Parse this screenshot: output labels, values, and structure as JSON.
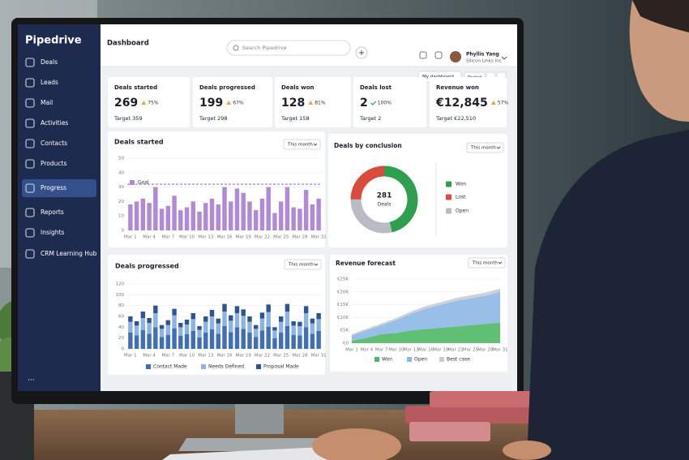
{
  "sidebar": {
    "logo": "Pipedrive",
    "items": [
      "Deals",
      "Leads",
      "Mail",
      "Activities",
      "Contacts",
      "Products",
      "Progress",
      "Reports",
      "Insights",
      "CRM Learning Hub"
    ],
    "more": "..."
  },
  "header": {
    "title": "Dashboard",
    "search_placeholder": "Search Pipedrive",
    "user_name": "Phyllis Yang",
    "user_company": "Silicon Links Inc"
  },
  "toolbar": {
    "dashboard": "My dashboard",
    "period": "Period"
  },
  "kpis": [
    {
      "title": "Deals started",
      "value": "269",
      "change": "75%",
      "target": "Target 359"
    },
    {
      "title": "Deals progressed",
      "value": "199",
      "change": "67%",
      "target": "Target 298"
    },
    {
      "title": "Deals won",
      "value": "128",
      "change": "81%",
      "target": "Target 158"
    },
    {
      "title": "Deals lost",
      "value": "2",
      "change": "100%",
      "target": "Target 2"
    },
    {
      "title": "Revenue won",
      "value": "€12,845",
      "change": "57%",
      "target": "Target €22,510"
    }
  ],
  "deals_started": {
    "type": "bar",
    "title": "Deals started",
    "filter": "This month",
    "legend": "Goal",
    "goal": 32,
    "color": "#b08ad6",
    "goal_color": "#7b4fb8",
    "categories": [
      "Mar 1",
      null,
      null,
      "Mar 4",
      null,
      null,
      "Mar 7",
      null,
      null,
      "Mar 10",
      null,
      null,
      "Mar 13",
      null,
      null,
      "Mar 16",
      null,
      null,
      "Mar 19",
      null,
      null,
      "Mar 22",
      null,
      null,
      "Mar 25",
      null,
      null,
      "Mar 28",
      null,
      null,
      "Mar 31"
    ],
    "values": [
      18,
      20,
      22,
      19,
      30,
      15,
      17,
      24,
      14,
      16,
      20,
      13,
      19,
      22,
      18,
      30,
      20,
      29,
      26,
      20,
      14,
      22,
      30,
      12,
      20,
      30,
      16,
      15,
      28,
      18,
      22
    ],
    "ylim": [
      0,
      50
    ],
    "yticks": [
      0,
      10,
      20,
      30,
      40,
      50
    ]
  },
  "deals_by_conclusion": {
    "type": "pie",
    "title": "Deals by conclusion",
    "filter": "This month",
    "total": "281",
    "total_label": "Deals",
    "categories": [
      "Won",
      "Lost",
      "Open"
    ],
    "values": [
      130,
      70,
      81
    ],
    "colors": [
      "#2e9e4f",
      "#d94c3d",
      "#b9bcc2"
    ]
  },
  "deals_progressed": {
    "type": "stacked_bar",
    "title": "Deals progressed",
    "filter": "This month",
    "categories": [
      "Mar 1",
      null,
      null,
      "Mar 4",
      null,
      null,
      "Mar 7",
      null,
      null,
      "Mar 10",
      null,
      null,
      "Mar 13",
      null,
      null,
      "Mar 16",
      null,
      null,
      "Mar 19",
      null,
      null,
      "Mar 22",
      null,
      null,
      "Mar 25",
      null,
      null,
      "Mar 28",
      null,
      null,
      "Mar 31"
    ],
    "series": [
      {
        "name": "Contact Made",
        "color": "#3f6fb6",
        "values": [
          30,
          25,
          35,
          28,
          40,
          22,
          26,
          38,
          24,
          27,
          33,
          21,
          30,
          36,
          28,
          42,
          31,
          40,
          37,
          30,
          22,
          34,
          41,
          20,
          30,
          42,
          26,
          25,
          40,
          28,
          33
        ]
      },
      {
        "name": "Needs Defined",
        "color": "#8db3e2",
        "values": [
          20,
          18,
          22,
          20,
          26,
          15,
          18,
          24,
          16,
          18,
          22,
          14,
          20,
          24,
          19,
          27,
          21,
          26,
          24,
          20,
          15,
          22,
          27,
          14,
          20,
          27,
          17,
          17,
          26,
          19,
          22
        ]
      },
      {
        "name": "Proposal Made",
        "color": "#2d5496",
        "values": [
          10,
          8,
          12,
          9,
          14,
          7,
          9,
          12,
          8,
          9,
          11,
          7,
          10,
          12,
          9,
          14,
          10,
          13,
          12,
          10,
          7,
          11,
          14,
          6,
          10,
          14,
          8,
          8,
          13,
          9,
          11
        ]
      }
    ],
    "ylim": [
      0,
      120
    ],
    "yticks": [
      0,
      20,
      40,
      60,
      80,
      100,
      120
    ]
  },
  "revenue_forecast": {
    "type": "stacked_area",
    "title": "Revenue forecast",
    "filter": "This month",
    "categories": [
      "Mar 1",
      "Mar 4",
      "Mar 7",
      "Mar 10",
      "Mar 13",
      "Mar 16",
      "Mar 19",
      "Mar 22",
      "Mar 25",
      "Mar 28",
      "Mar 31"
    ],
    "series": [
      {
        "name": "Won",
        "color": "#4cb866",
        "values": [
          1000,
          2000,
          3500,
          4000,
          5000,
          5500,
          6000,
          6500,
          7000,
          7500,
          8000
        ]
      },
      {
        "name": "Open",
        "color": "#8db8e6",
        "values": [
          2000,
          3000,
          3500,
          5000,
          6500,
          8000,
          9000,
          10000,
          10500,
          11000,
          12000
        ]
      },
      {
        "name": "Best case",
        "color": "#c9ccd1",
        "values": [
          500,
          600,
          700,
          800,
          900,
          1000,
          1000,
          1100,
          1200,
          1200,
          1300
        ]
      }
    ],
    "ylim": [
      0,
      25000
    ],
    "yticks": [
      {
        "value": 0,
        "label": "€0"
      },
      {
        "value": 5000,
        "label": "€5K"
      },
      {
        "value": 10000,
        "label": "€10K"
      },
      {
        "value": 15000,
        "label": "€15K"
      },
      {
        "value": 20000,
        "label": "€20K"
      },
      {
        "value": 25000,
        "label": "€25K"
      }
    ]
  }
}
